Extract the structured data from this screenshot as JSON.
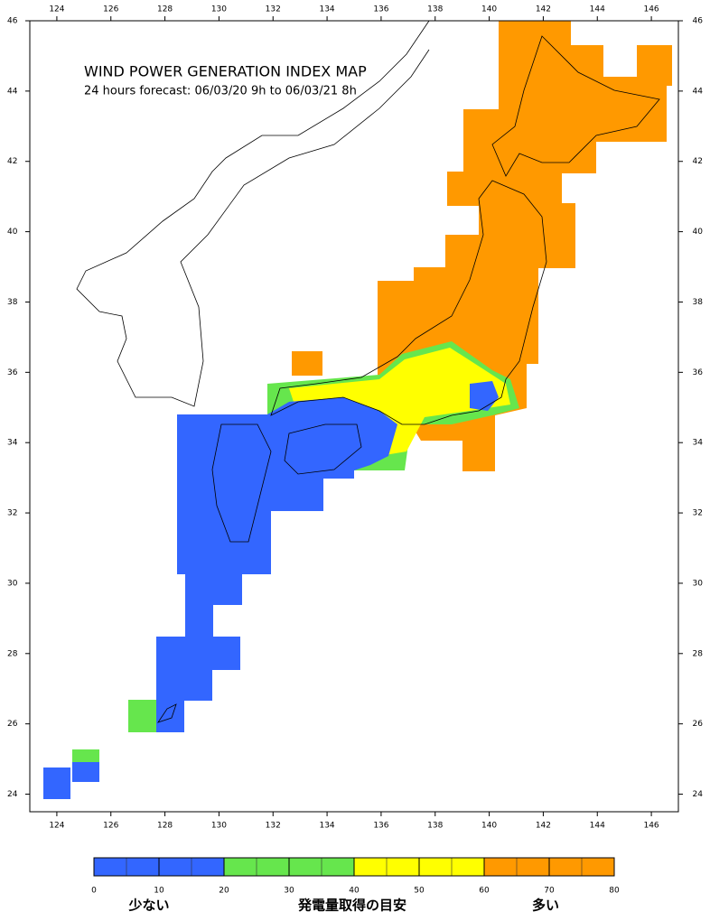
{
  "map": {
    "title": "WIND POWER GENERATION INDEX MAP",
    "subtitle": "24 hours forecast: 06/03/20 9h to 06/03/21 8h",
    "xlim": [
      123,
      147
    ],
    "ylim": [
      23.5,
      46
    ],
    "xticks": [
      124,
      126,
      128,
      130,
      132,
      134,
      136,
      138,
      140,
      142,
      144,
      146
    ],
    "yticks": [
      24,
      26,
      28,
      30,
      32,
      34,
      36,
      38,
      40,
      42,
      44,
      46
    ]
  },
  "colorbar": {
    "lim": [
      0,
      80
    ],
    "ticks": [
      0,
      10,
      20,
      30,
      40,
      50,
      60,
      70,
      80
    ],
    "colors": [
      "#3366ff",
      "#66e64d",
      "#ffff00",
      "#ff9900"
    ],
    "labels": [
      "少ない",
      "発電量取得の目安",
      "多い"
    ]
  }
}
